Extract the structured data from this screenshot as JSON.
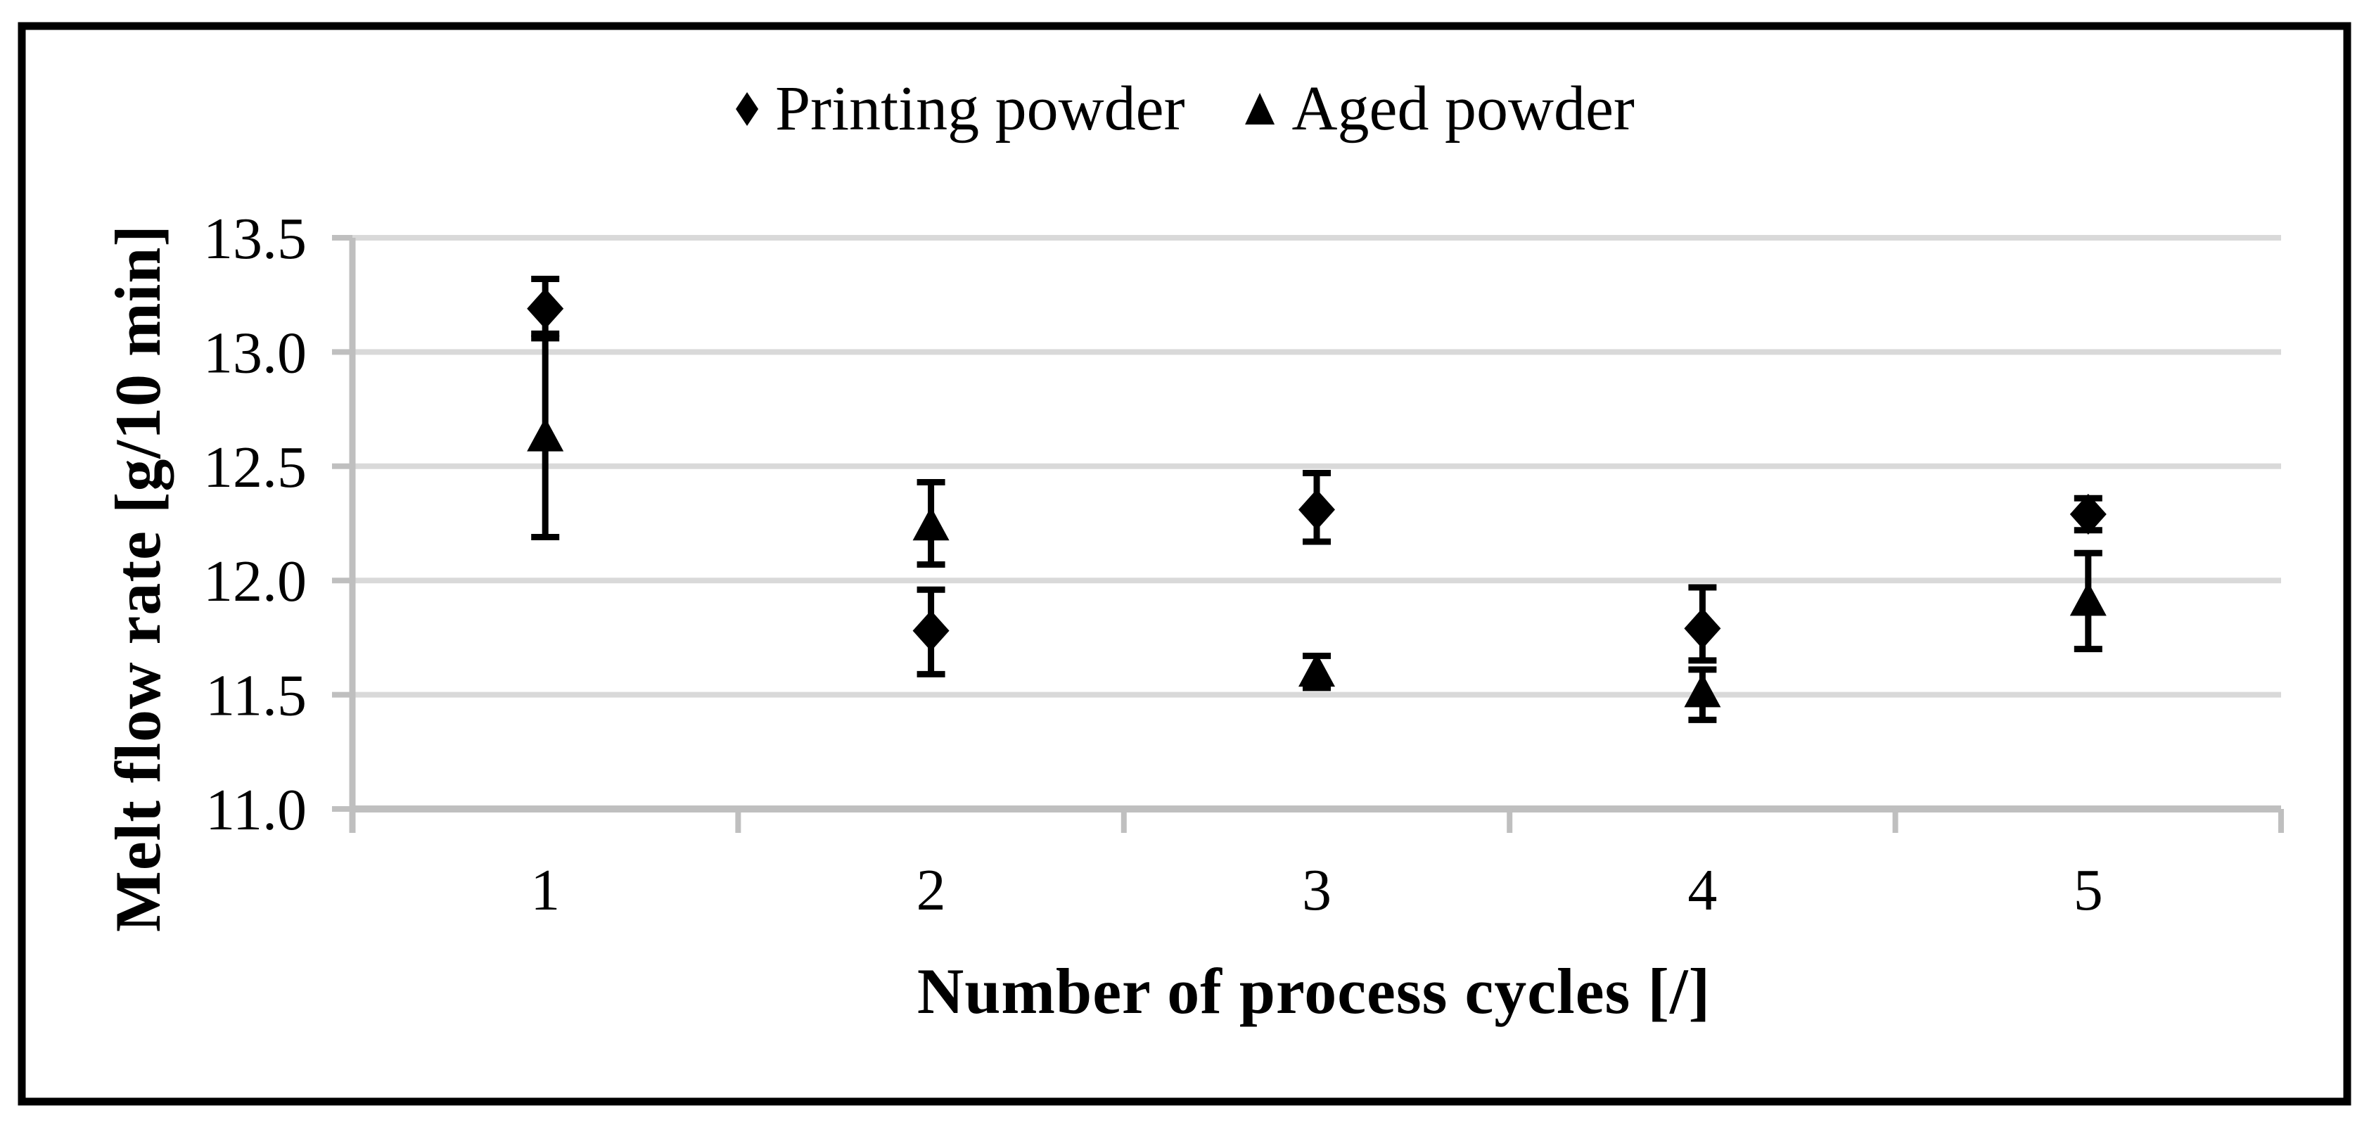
{
  "figure": {
    "background_color": "#ffffff",
    "border_color": "#000000"
  },
  "chart_data": {
    "type": "scatter",
    "title": "",
    "xlabel": "Number of process cycles [/]",
    "ylabel": "Melt flow rate [g/10 min]",
    "categories": [
      1,
      2,
      3,
      4,
      5
    ],
    "x_tick_labels": [
      "1",
      "2",
      "3",
      "4",
      "5"
    ],
    "y_ticks": [
      13.5,
      13.0,
      12.5,
      12.0,
      11.5,
      11.0
    ],
    "y_tick_labels": [
      "13.5",
      "13.0",
      "12.5",
      "12.0",
      "11.5",
      "11.0"
    ],
    "ylim": [
      11.0,
      13.5
    ],
    "grid": "horizontal",
    "legend_position": "top-center",
    "series": [
      {
        "name": "Printing powder",
        "marker": "diamond",
        "color": "#000000",
        "values": [
          13.19,
          11.78,
          12.31,
          11.79,
          12.29
        ],
        "err_up": [
          0.13,
          0.18,
          0.16,
          0.18,
          0.07
        ],
        "err_down": [
          0.11,
          0.19,
          0.14,
          0.14,
          0.07
        ]
      },
      {
        "name": "Aged powder",
        "marker": "triangle",
        "color": "#000000",
        "values": [
          12.63,
          12.24,
          11.6,
          11.51,
          11.91
        ],
        "err_up": [
          0.43,
          0.19,
          0.07,
          0.1,
          0.21
        ],
        "err_down": [
          0.44,
          0.17,
          0.07,
          0.12,
          0.21
        ]
      }
    ],
    "colors": {
      "gridline": "#D9D9D9",
      "axis": "#BFBFBF",
      "marker": "#000000",
      "text": "#000000"
    }
  }
}
